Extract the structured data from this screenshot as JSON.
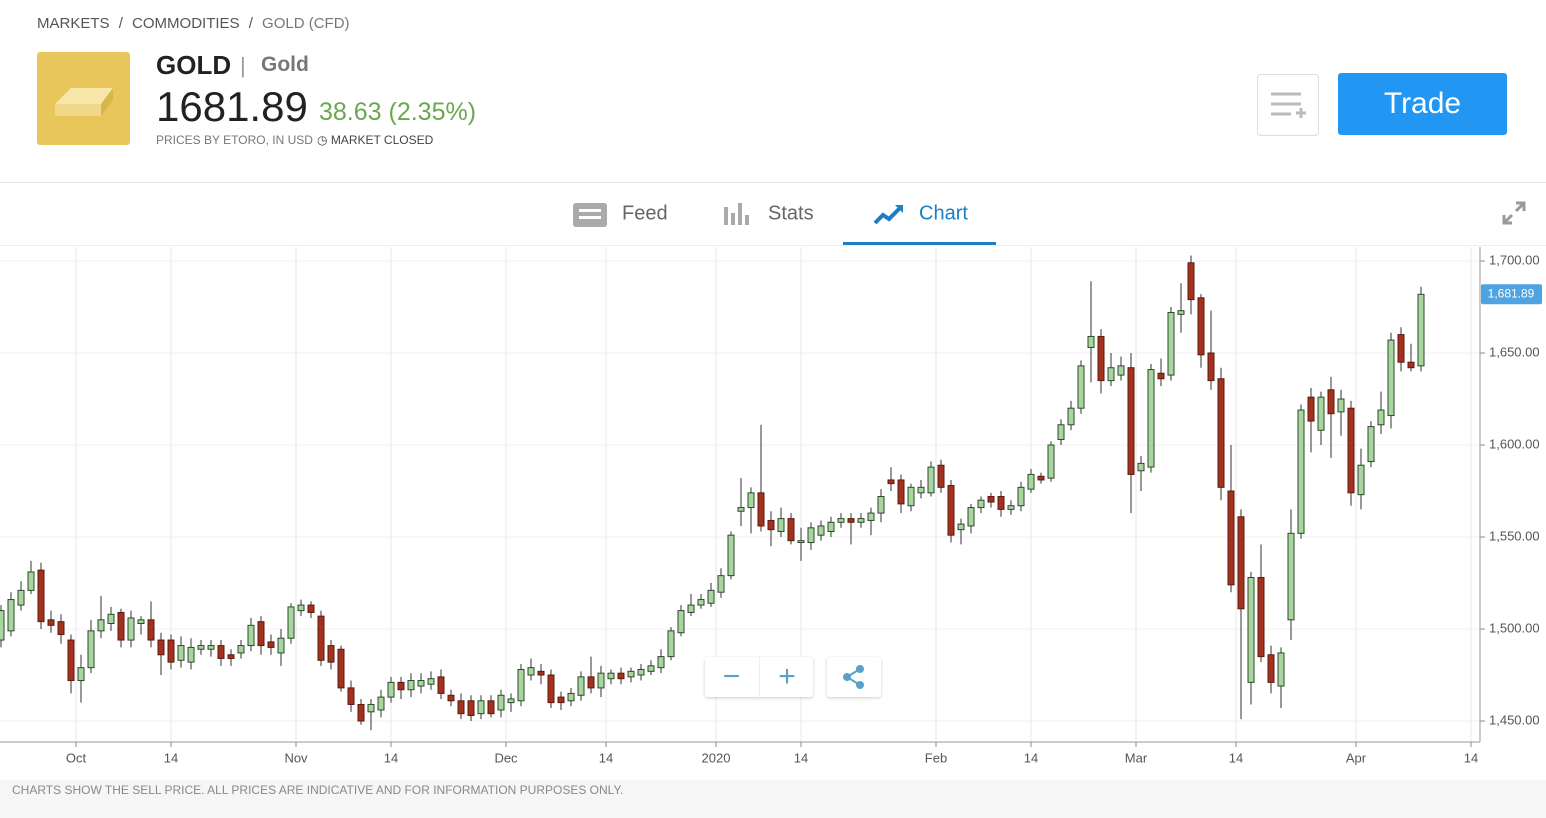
{
  "header": {
    "breadcrumb": [
      "MARKETS",
      "COMMODITIES",
      "GOLD (CFD)"
    ],
    "separator": "/",
    "symbol": "GOLD",
    "divider": "|",
    "name": "Gold",
    "price": "1681.89",
    "change": "38.63 (2.35%)",
    "source": "PRICES BY ETORO, IN USD",
    "status": "MARKET CLOSED",
    "trade": "Trade"
  },
  "tabs": [
    "Feed",
    "Stats",
    "Chart"
  ],
  "footer": "CHARTS SHOW THE SELL PRICE. ALL PRICES ARE INDICATIVE AND FOR INFORMATION PURPOSES ONLY.",
  "chart_data": {
    "type": "candlestick",
    "up_color": "#a9d5a0",
    "down_color": "#a4311e",
    "grid": true,
    "x": [
      0,
      1,
      2,
      3,
      4,
      5,
      6,
      7,
      8,
      9,
      10,
      11,
      12,
      13,
      14,
      15,
      16,
      17,
      18,
      19,
      20,
      21,
      22,
      23,
      24,
      25,
      26,
      27,
      28,
      29,
      30,
      31,
      32,
      33,
      34,
      35,
      36,
      37,
      38,
      39,
      40,
      41,
      42,
      43,
      44,
      45,
      46,
      47,
      48,
      49,
      50,
      51,
      52,
      53,
      54,
      55,
      56,
      57,
      58,
      59,
      60,
      61,
      62,
      63,
      64,
      65,
      66,
      67,
      68,
      69,
      70,
      71,
      72,
      73,
      74,
      75,
      76,
      77,
      78,
      79,
      80,
      81,
      82,
      83,
      84,
      85,
      86,
      87,
      88,
      89,
      90,
      91,
      92,
      93,
      94,
      95,
      96,
      97,
      98,
      99,
      100,
      101,
      102,
      103,
      104,
      105,
      106,
      107,
      108,
      109,
      110,
      111,
      112,
      113,
      114,
      115,
      116,
      117,
      118,
      119,
      120,
      121,
      122,
      123,
      124,
      125,
      126,
      127,
      128,
      129,
      130,
      131,
      132,
      133,
      134,
      135,
      136,
      137,
      138,
      139,
      140,
      141,
      142
    ],
    "open": [
      1494,
      1499,
      1513,
      1521,
      1532,
      1505,
      1504,
      1494,
      1472,
      1479,
      1499,
      1503,
      1509,
      1494,
      1503,
      1505,
      1494,
      1494,
      1483,
      1482,
      1489,
      1489,
      1491,
      1486,
      1487,
      1491,
      1504,
      1493,
      1487,
      1495,
      1510,
      1513,
      1507,
      1491,
      1489,
      1468,
      1459,
      1455,
      1456,
      1463,
      1471,
      1467,
      1469,
      1470,
      1474,
      1464,
      1461,
      1461,
      1454,
      1461,
      1456,
      1460,
      1461,
      1475,
      1477,
      1475,
      1463,
      1461,
      1464,
      1474,
      1468,
      1473,
      1476,
      1474,
      1475,
      1477,
      1479,
      1485,
      1498,
      1509,
      1513,
      1514,
      1520,
      1529,
      1564,
      1566,
      1574,
      1559,
      1553,
      1560,
      1547,
      1547,
      1551,
      1553,
      1558,
      1560,
      1558,
      1559,
      1563,
      1581,
      1581,
      1567,
      1574,
      1574,
      1589,
      1578,
      1554,
      1556,
      1566,
      1572,
      1572,
      1565,
      1567,
      1576,
      1583,
      1582,
      1603,
      1611,
      1620,
      1653,
      1659,
      1635,
      1638,
      1642,
      1586,
      1588,
      1639,
      1638,
      1671,
      1699,
      1680,
      1650,
      1636,
      1575,
      1561,
      1471,
      1528,
      1486,
      1469,
      1505,
      1552,
      1626,
      1608,
      1630,
      1618,
      1620,
      1573,
      1591,
      1611,
      1616,
      1660,
      1645,
      1643
    ],
    "high": [
      1513,
      1520,
      1526,
      1537,
      1536,
      1510,
      1508,
      1497,
      1486,
      1505,
      1518,
      1512,
      1511,
      1510,
      1507,
      1515,
      1498,
      1497,
      1496,
      1495,
      1494,
      1494,
      1494,
      1489,
      1494,
      1506,
      1507,
      1497,
      1500,
      1514,
      1516,
      1515,
      1510,
      1494,
      1491,
      1472,
      1462,
      1462,
      1467,
      1474,
      1474,
      1476,
      1476,
      1477,
      1478,
      1467,
      1465,
      1464,
      1464,
      1464,
      1467,
      1465,
      1481,
      1484,
      1481,
      1478,
      1466,
      1468,
      1477,
      1485,
      1480,
      1478,
      1479,
      1479,
      1481,
      1483,
      1489,
      1501,
      1513,
      1519,
      1519,
      1525,
      1533,
      1553,
      1582,
      1577,
      1611,
      1564,
      1566,
      1563,
      1555,
      1558,
      1559,
      1561,
      1563,
      1563,
      1563,
      1566,
      1576,
      1588,
      1584,
      1579,
      1581,
      1591,
      1592,
      1581,
      1560,
      1568,
      1572,
      1574,
      1575,
      1570,
      1580,
      1587,
      1585,
      1602,
      1614,
      1624,
      1646,
      1689,
      1663,
      1650,
      1648,
      1650,
      1594,
      1644,
      1647,
      1675,
      1688,
      1703,
      1682,
      1673,
      1642,
      1600,
      1565,
      1531,
      1546,
      1491,
      1490,
      1565,
      1622,
      1631,
      1629,
      1637,
      1630,
      1624,
      1598,
      1613,
      1629,
      1661,
      1664,
      1655,
      1686
    ],
    "low": [
      1490,
      1496,
      1510,
      1519,
      1500,
      1498,
      1492,
      1465,
      1460,
      1476,
      1495,
      1499,
      1490,
      1490,
      1497,
      1490,
      1475,
      1478,
      1479,
      1478,
      1486,
      1485,
      1480,
      1480,
      1484,
      1488,
      1486,
      1486,
      1480,
      1492,
      1507,
      1506,
      1480,
      1478,
      1466,
      1455,
      1448,
      1445,
      1452,
      1460,
      1462,
      1463,
      1465,
      1467,
      1462,
      1458,
      1451,
      1450,
      1451,
      1452,
      1452,
      1455,
      1458,
      1472,
      1470,
      1457,
      1456,
      1458,
      1461,
      1465,
      1463,
      1470,
      1470,
      1471,
      1472,
      1475,
      1476,
      1483,
      1496,
      1507,
      1511,
      1512,
      1517,
      1527,
      1556,
      1552,
      1553,
      1545,
      1550,
      1546,
      1537,
      1543,
      1548,
      1550,
      1555,
      1546,
      1555,
      1551,
      1558,
      1575,
      1563,
      1564,
      1571,
      1572,
      1574,
      1547,
      1546,
      1552,
      1563,
      1566,
      1561,
      1562,
      1564,
      1574,
      1579,
      1580,
      1600,
      1608,
      1617,
      1634,
      1628,
      1632,
      1635,
      1563,
      1575,
      1585,
      1632,
      1635,
      1661,
      1671,
      1642,
      1630,
      1570,
      1520,
      1451,
      1459,
      1482,
      1465,
      1457,
      1494,
      1549,
      1596,
      1600,
      1593,
      1605,
      1567,
      1565,
      1588,
      1606,
      1609,
      1640,
      1640,
      1640
    ],
    "close": [
      1510,
      1516,
      1521,
      1531,
      1504,
      1502,
      1497,
      1472,
      1479,
      1499,
      1505,
      1508,
      1494,
      1506,
      1505,
      1494,
      1486,
      1482,
      1491,
      1490,
      1491,
      1491,
      1484,
      1484,
      1491,
      1502,
      1491,
      1490,
      1495,
      1512,
      1513,
      1509,
      1483,
      1482,
      1468,
      1459,
      1450,
      1459,
      1463,
      1471,
      1467,
      1472,
      1472,
      1473,
      1465,
      1461,
      1454,
      1453,
      1461,
      1454,
      1464,
      1462,
      1478,
      1479,
      1475,
      1460,
      1460,
      1465,
      1474,
      1468,
      1476,
      1476,
      1473,
      1477,
      1478,
      1480,
      1485,
      1499,
      1510,
      1513,
      1516,
      1521,
      1529,
      1551,
      1566,
      1574,
      1556,
      1554,
      1560,
      1548,
      1548,
      1555,
      1556,
      1558,
      1560,
      1558,
      1560,
      1563,
      1572,
      1579,
      1568,
      1577,
      1577,
      1588,
      1577,
      1551,
      1557,
      1566,
      1570,
      1569,
      1565,
      1567,
      1577,
      1584,
      1581,
      1600,
      1611,
      1620,
      1643,
      1659,
      1635,
      1642,
      1643,
      1584,
      1590,
      1641,
      1636,
      1672,
      1673,
      1679,
      1649,
      1635,
      1577,
      1524,
      1511,
      1528,
      1485,
      1471,
      1487,
      1552,
      1619,
      1613,
      1626,
      1617,
      1625,
      1574,
      1589,
      1610,
      1619,
      1657,
      1645,
      1642,
      1681.89
    ],
    "current": {
      "value": 1681.89,
      "label": "1,681.89"
    },
    "xlim": [
      -0.1,
      147.9
    ],
    "ylim": [
      1438.6,
      1707.6
    ],
    "xticks": [
      {
        "value": 7.5,
        "label": "Oct"
      },
      {
        "value": 17,
        "label": "14"
      },
      {
        "value": 29.5,
        "label": "Nov"
      },
      {
        "value": 39,
        "label": "14"
      },
      {
        "value": 50.5,
        "label": "Dec"
      },
      {
        "value": 60.5,
        "label": "14"
      },
      {
        "value": 71.5,
        "label": "2020"
      },
      {
        "value": 80,
        "label": "14"
      },
      {
        "value": 93.5,
        "label": "Feb"
      },
      {
        "value": 103,
        "label": "14"
      },
      {
        "value": 113.5,
        "label": "Mar"
      },
      {
        "value": 123.5,
        "label": "14"
      },
      {
        "value": 135.5,
        "label": "Apr"
      },
      {
        "value": 147,
        "label": "14"
      }
    ],
    "yticks": [
      {
        "value": 1450,
        "label": "1,450.00"
      },
      {
        "value": 1500,
        "label": "1,500.00"
      },
      {
        "value": 1550,
        "label": "1,550.00"
      },
      {
        "value": 1600,
        "label": "1,600.00"
      },
      {
        "value": 1650,
        "label": "1,650.00"
      },
      {
        "value": 1700,
        "label": "1,700.00"
      }
    ]
  }
}
